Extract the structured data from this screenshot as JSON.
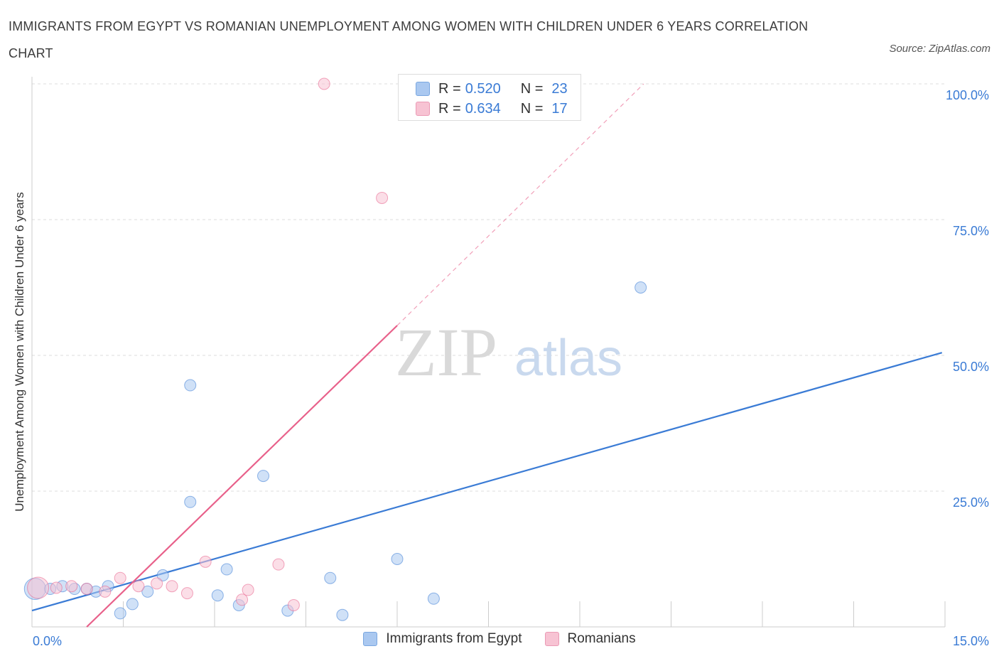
{
  "title": "IMMIGRANTS FROM EGYPT VS ROMANIAN UNEMPLOYMENT AMONG WOMEN WITH CHILDREN UNDER 6 YEARS CORRELATION CHART",
  "source": "Source: ZipAtlas.com",
  "watermark": {
    "zip": "ZIP",
    "atlas": "atlas"
  },
  "legend": {
    "rows": [
      {
        "r_label": "R =",
        "r_value": "0.520",
        "n_label": "N =",
        "n_value": "23",
        "color": "#aac8f0",
        "border": "#7aa7e0"
      },
      {
        "r_label": "R =",
        "r_value": "0.634",
        "n_label": "N =",
        "n_value": "17",
        "color": "#f7c3d3",
        "border": "#eb9ab5"
      }
    ]
  },
  "bottom_legend": [
    {
      "label": "Immigrants from Egypt",
      "color": "#aac8f0",
      "border": "#7aa7e0"
    },
    {
      "label": "Romanians",
      "color": "#f7c3d3",
      "border": "#eb9ab5"
    }
  ],
  "chart_data": {
    "type": "scatter",
    "title": "IMMIGRANTS FROM EGYPT VS ROMANIAN UNEMPLOYMENT AMONG WOMEN WITH CHILDREN UNDER 6 YEARS CORRELATION CHART",
    "xlabel": "",
    "ylabel": "Unemployment Among Women with Children Under 6 years",
    "xlim": [
      0,
      15
    ],
    "ylim": [
      0,
      100
    ],
    "x_tick_labels": [
      "0.0%",
      "15.0%"
    ],
    "y_ticks": [
      25,
      50,
      75,
      100
    ],
    "y_tick_labels": [
      "25.0%",
      "50.0%",
      "75.0%",
      "100.0%"
    ],
    "grid": true,
    "series": [
      {
        "name": "Immigrants from Egypt",
        "color": "#3a7bd5",
        "fill": "#aac8f0",
        "r": 0.52,
        "n": 23,
        "points": [
          [
            0.05,
            7.0
          ],
          [
            0.3,
            7.0
          ],
          [
            0.5,
            7.5
          ],
          [
            0.7,
            7.0
          ],
          [
            0.9,
            7.0
          ],
          [
            1.05,
            6.5
          ],
          [
            1.25,
            7.5
          ],
          [
            1.45,
            2.5
          ],
          [
            1.65,
            4.2
          ],
          [
            1.9,
            6.5
          ],
          [
            2.15,
            9.5
          ],
          [
            2.6,
            23.0
          ],
          [
            2.6,
            44.5
          ],
          [
            3.05,
            5.8
          ],
          [
            3.2,
            10.6
          ],
          [
            3.4,
            4.0
          ],
          [
            3.8,
            27.8
          ],
          [
            4.2,
            3.0
          ],
          [
            4.9,
            9.0
          ],
          [
            5.1,
            2.2
          ],
          [
            6.0,
            12.5
          ],
          [
            6.6,
            5.2
          ],
          [
            10.0,
            62.5
          ]
        ],
        "trendline": {
          "x": [
            0,
            14.95
          ],
          "y": [
            3.0,
            50.5
          ]
        }
      },
      {
        "name": "Romanians",
        "color": "#e8608a",
        "fill": "#f7c3d3",
        "r": 0.634,
        "n": 17,
        "points": [
          [
            0.1,
            7.2
          ],
          [
            0.4,
            7.2
          ],
          [
            0.65,
            7.5
          ],
          [
            0.9,
            7.0
          ],
          [
            1.2,
            6.5
          ],
          [
            1.45,
            9.0
          ],
          [
            1.75,
            7.5
          ],
          [
            2.05,
            8.0
          ],
          [
            2.3,
            7.5
          ],
          [
            2.55,
            6.2
          ],
          [
            2.85,
            12.0
          ],
          [
            3.45,
            5.0
          ],
          [
            3.55,
            6.8
          ],
          [
            4.05,
            11.5
          ],
          [
            4.3,
            4.0
          ],
          [
            4.8,
            100.0
          ],
          [
            5.75,
            79.0
          ]
        ],
        "trendline": {
          "x": [
            0.9,
            6.0
          ],
          "y": [
            0.0,
            55.5
          ]
        },
        "trendline_extension": {
          "x": [
            6.0,
            10.05
          ],
          "y": [
            55.5,
            100.0
          ]
        }
      }
    ]
  }
}
